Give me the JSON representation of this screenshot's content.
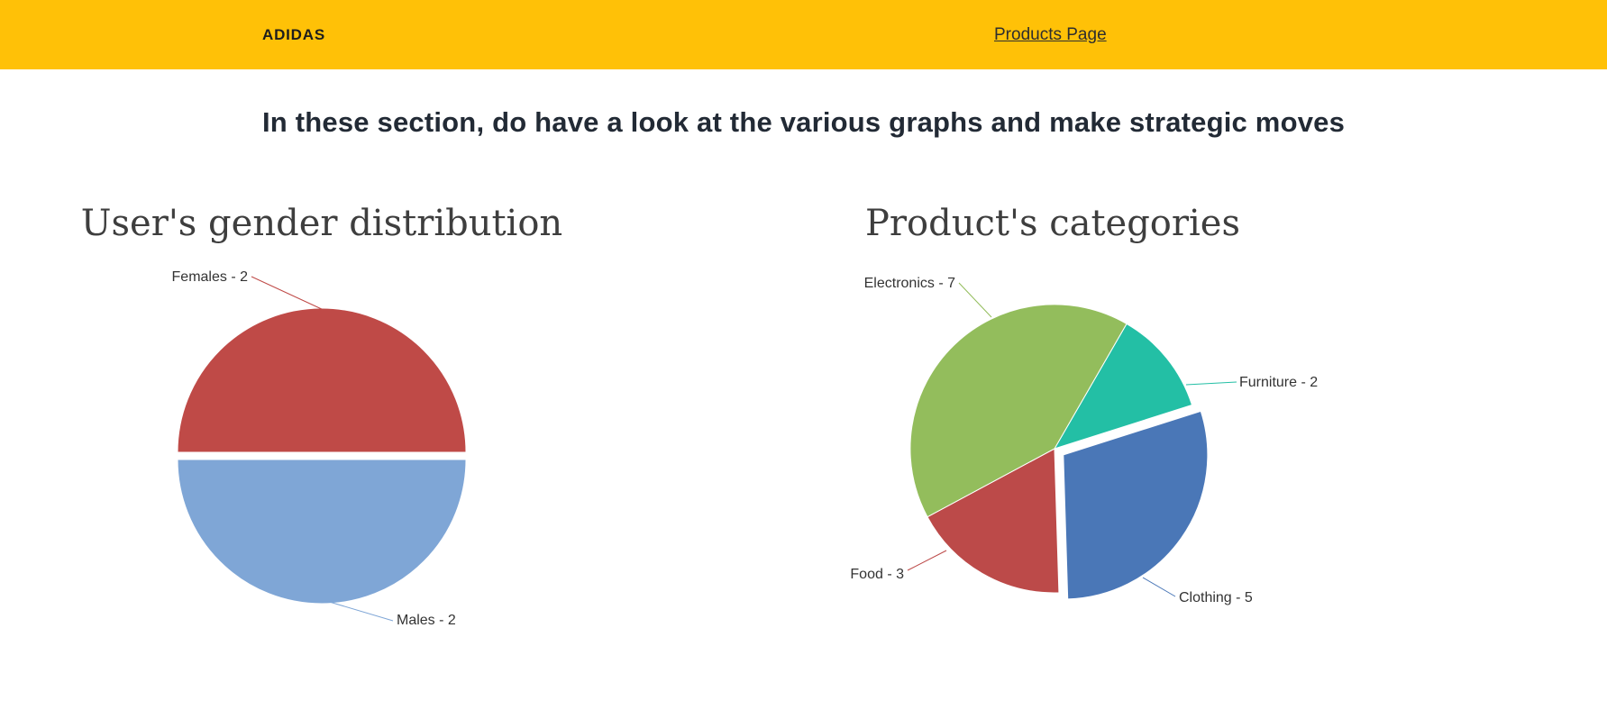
{
  "header": {
    "brand": "ADIDAS",
    "nav_link": "Products Page",
    "background": "#ffc107"
  },
  "intro": {
    "heading": "In these section, do have a look at the various graphs and make strategic moves"
  },
  "chart_data": [
    {
      "type": "pie",
      "title": "User's gender distribution",
      "legend": "labeled",
      "label_format": "{label} - {value}",
      "start_angle": 270,
      "slices": [
        {
          "label": "Females",
          "value": 2,
          "color": "#bf4a47"
        },
        {
          "label": "Males",
          "value": 2,
          "color": "#7fa6d6"
        }
      ]
    },
    {
      "type": "pie",
      "title": "Product's categories",
      "legend": "labeled",
      "label_format": "{label} - {value}",
      "start_angle": 30,
      "slices": [
        {
          "label": "Electronics",
          "value": 7,
          "color": "#93bd5c"
        },
        {
          "label": "Furniture",
          "value": 2,
          "color": "#23bfa5"
        },
        {
          "label": "Clothing",
          "value": 5,
          "color": "#4a77b7",
          "exploded": true
        },
        {
          "label": "Food",
          "value": 3,
          "color": "#bc4a49"
        }
      ]
    }
  ]
}
